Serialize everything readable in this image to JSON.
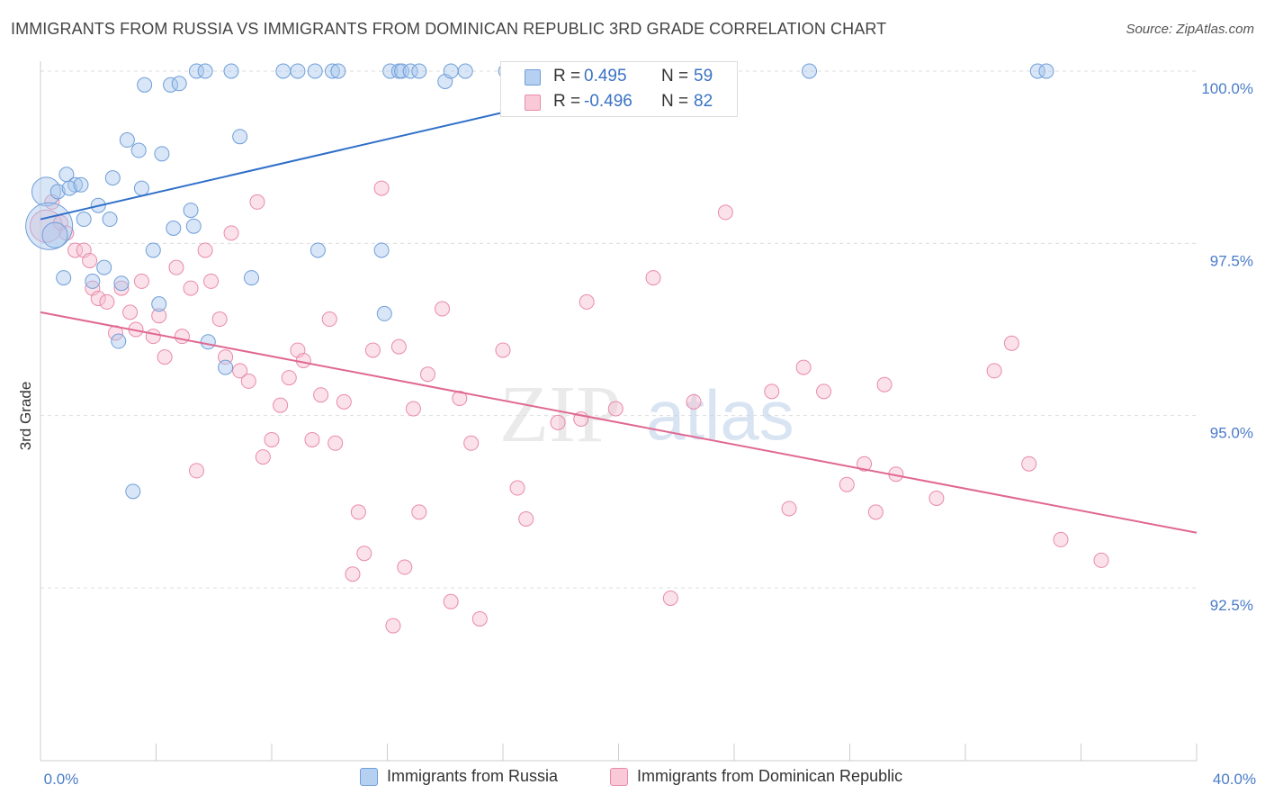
{
  "title": "IMMIGRANTS FROM RUSSIA VS IMMIGRANTS FROM DOMINICAN REPUBLIC 3RD GRADE CORRELATION CHART",
  "source": "Source: ZipAtlas.com",
  "watermark": {
    "zip": "ZIP",
    "atlas": "atlas"
  },
  "colors": {
    "russia_fill": "#a9c8ee",
    "russia_stroke": "#6f9ed8",
    "russia_line": "#2f6fc9",
    "dominican_fill": "#f6bfd0",
    "dominican_stroke": "#e98aa8",
    "dominican_line": "#e06890",
    "axis_label": "#4a7cc7",
    "grid": "#dddddd"
  },
  "stats": {
    "r_label": "R =",
    "n_label": "N =",
    "russia": {
      "r": "0.495",
      "n": "59"
    },
    "dominican": {
      "r": "-0.496",
      "n": "82"
    }
  },
  "legend": {
    "russia": "Immigrants from Russia",
    "dominican": "Immigrants from Dominican Republic"
  },
  "chart_data": {
    "type": "scatter",
    "title": "IMMIGRANTS FROM RUSSIA VS IMMIGRANTS FROM DOMINICAN REPUBLIC 3RD GRADE CORRELATION CHART",
    "xlabel": "",
    "ylabel": "3rd Grade",
    "xlim": [
      0,
      40
    ],
    "ylim": [
      90.2,
      100.7
    ],
    "x_tick_labels": [
      "0.0%",
      "40.0%"
    ],
    "y_ticks": [
      92.5,
      95.0,
      97.5,
      100.0
    ],
    "y_tick_labels": [
      "92.5%",
      "95.0%",
      "97.5%",
      "100.0%"
    ],
    "grid": "horizontal dashed",
    "legend_position": "bottom",
    "series": [
      {
        "name": "Immigrants from Russia",
        "trend": {
          "x": [
            0,
            22.2
          ],
          "y": [
            97.85,
            100.0
          ]
        },
        "points": [
          [
            0.2,
            98.25,
            16
          ],
          [
            0.3,
            97.75,
            26
          ],
          [
            0.5,
            97.62,
            14
          ],
          [
            0.6,
            98.25,
            10
          ],
          [
            0.8,
            97.0,
            10
          ],
          [
            0.9,
            98.5,
            10
          ],
          [
            1.2,
            98.35,
            10
          ],
          [
            1.0,
            98.3,
            10
          ],
          [
            1.4,
            98.35,
            10
          ],
          [
            1.5,
            97.85,
            10
          ],
          [
            1.8,
            96.95,
            10
          ],
          [
            2.0,
            98.05,
            10
          ],
          [
            2.2,
            97.15,
            10
          ],
          [
            2.4,
            97.85,
            10
          ],
          [
            2.5,
            98.45,
            10
          ],
          [
            2.8,
            96.92,
            10
          ],
          [
            3.0,
            99.0,
            10
          ],
          [
            3.4,
            98.85,
            10
          ],
          [
            3.5,
            98.3,
            10
          ],
          [
            3.6,
            99.8,
            10
          ],
          [
            3.9,
            97.4,
            10
          ],
          [
            4.1,
            96.62,
            10
          ],
          [
            4.2,
            98.8,
            10
          ],
          [
            4.5,
            99.8,
            10
          ],
          [
            4.6,
            97.72,
            10
          ],
          [
            4.8,
            99.82,
            10
          ],
          [
            5.2,
            97.98,
            10
          ],
          [
            5.3,
            97.75,
            10
          ],
          [
            5.4,
            100.0,
            10
          ],
          [
            5.7,
            100.0,
            10
          ],
          [
            5.8,
            96.07,
            10
          ],
          [
            6.4,
            95.7,
            10
          ],
          [
            6.6,
            100.0,
            10
          ],
          [
            6.9,
            99.05,
            10
          ],
          [
            7.3,
            97.0,
            10
          ],
          [
            8.4,
            100.0,
            10
          ],
          [
            8.9,
            100.0,
            10
          ],
          [
            9.5,
            100.0,
            10
          ],
          [
            9.6,
            97.4,
            10
          ],
          [
            10.1,
            100.0,
            10
          ],
          [
            10.3,
            100.0,
            10
          ],
          [
            11.8,
            97.4,
            10
          ],
          [
            11.9,
            96.48,
            10
          ],
          [
            12.1,
            100.0,
            10
          ],
          [
            12.4,
            100.0,
            10
          ],
          [
            12.5,
            100.0,
            10
          ],
          [
            12.8,
            100.0,
            10
          ],
          [
            13.1,
            100.0,
            10
          ],
          [
            14.0,
            99.85,
            10
          ],
          [
            14.2,
            100.0,
            10
          ],
          [
            14.7,
            100.0,
            10
          ],
          [
            16.1,
            100.0,
            10
          ],
          [
            3.2,
            93.9,
            10
          ],
          [
            17.9,
            100.0,
            10
          ],
          [
            22.0,
            100.0,
            10
          ],
          [
            26.6,
            100.0,
            10
          ],
          [
            34.5,
            100.0,
            10
          ],
          [
            34.8,
            100.0,
            10
          ],
          [
            2.7,
            96.08,
            10
          ]
        ]
      },
      {
        "name": "Immigrants from Dominican Republic",
        "trend": {
          "x": [
            0,
            40
          ],
          "y": [
            96.5,
            93.3
          ]
        },
        "points": [
          [
            0.2,
            97.75,
            18
          ],
          [
            0.4,
            98.1,
            10
          ],
          [
            0.7,
            97.8,
            10
          ],
          [
            0.9,
            97.65,
            10
          ],
          [
            1.2,
            97.4,
            10
          ],
          [
            1.5,
            97.4,
            10
          ],
          [
            1.7,
            97.25,
            10
          ],
          [
            1.8,
            96.85,
            10
          ],
          [
            2.0,
            96.7,
            10
          ],
          [
            2.3,
            96.65,
            10
          ],
          [
            2.6,
            96.2,
            10
          ],
          [
            2.8,
            96.85,
            10
          ],
          [
            3.1,
            96.5,
            10
          ],
          [
            3.3,
            96.25,
            10
          ],
          [
            3.5,
            96.95,
            10
          ],
          [
            3.9,
            96.15,
            10
          ],
          [
            4.1,
            96.45,
            10
          ],
          [
            4.3,
            95.85,
            10
          ],
          [
            4.7,
            97.15,
            10
          ],
          [
            4.9,
            96.15,
            10
          ],
          [
            5.2,
            96.85,
            10
          ],
          [
            5.4,
            94.2,
            10
          ],
          [
            5.7,
            97.4,
            10
          ],
          [
            5.9,
            96.95,
            10
          ],
          [
            6.2,
            96.4,
            10
          ],
          [
            6.4,
            95.85,
            10
          ],
          [
            6.6,
            97.65,
            10
          ],
          [
            6.9,
            95.65,
            10
          ],
          [
            7.2,
            95.5,
            10
          ],
          [
            7.5,
            98.1,
            10
          ],
          [
            7.7,
            94.4,
            10
          ],
          [
            8.0,
            94.65,
            10
          ],
          [
            8.3,
            95.15,
            10
          ],
          [
            8.6,
            95.55,
            10
          ],
          [
            8.9,
            95.95,
            10
          ],
          [
            9.1,
            95.8,
            10
          ],
          [
            9.4,
            94.65,
            10
          ],
          [
            9.7,
            95.3,
            10
          ],
          [
            10.0,
            96.4,
            10
          ],
          [
            10.2,
            94.6,
            10
          ],
          [
            10.5,
            95.2,
            10
          ],
          [
            10.8,
            92.7,
            10
          ],
          [
            11.0,
            93.6,
            10
          ],
          [
            11.2,
            93.0,
            10
          ],
          [
            11.5,
            95.95,
            10
          ],
          [
            11.8,
            98.3,
            10
          ],
          [
            12.2,
            91.95,
            10
          ],
          [
            12.4,
            96.0,
            10
          ],
          [
            12.6,
            92.8,
            10
          ],
          [
            12.9,
            95.1,
            10
          ],
          [
            13.1,
            93.6,
            10
          ],
          [
            13.4,
            95.6,
            10
          ],
          [
            13.9,
            96.55,
            10
          ],
          [
            14.2,
            92.3,
            10
          ],
          [
            14.5,
            95.25,
            10
          ],
          [
            14.9,
            94.6,
            10
          ],
          [
            15.2,
            92.05,
            10
          ],
          [
            16.0,
            95.95,
            10
          ],
          [
            16.5,
            93.95,
            10
          ],
          [
            16.8,
            93.5,
            10
          ],
          [
            17.9,
            94.9,
            10
          ],
          [
            18.7,
            94.95,
            10
          ],
          [
            18.9,
            96.65,
            10
          ],
          [
            19.9,
            95.1,
            10
          ],
          [
            21.2,
            97.0,
            10
          ],
          [
            21.8,
            92.35,
            10
          ],
          [
            22.6,
            95.2,
            10
          ],
          [
            23.7,
            97.95,
            10
          ],
          [
            25.3,
            95.35,
            10
          ],
          [
            25.9,
            93.65,
            10
          ],
          [
            26.4,
            95.7,
            10
          ],
          [
            27.1,
            95.35,
            10
          ],
          [
            27.9,
            94.0,
            10
          ],
          [
            28.5,
            94.3,
            10
          ],
          [
            28.9,
            93.6,
            10
          ],
          [
            29.2,
            95.45,
            10
          ],
          [
            29.6,
            94.15,
            10
          ],
          [
            31.0,
            93.8,
            10
          ],
          [
            33.0,
            95.65,
            10
          ],
          [
            33.6,
            96.05,
            10
          ],
          [
            34.2,
            94.3,
            10
          ],
          [
            35.3,
            93.2,
            10
          ],
          [
            36.7,
            92.9,
            10
          ]
        ]
      }
    ]
  }
}
